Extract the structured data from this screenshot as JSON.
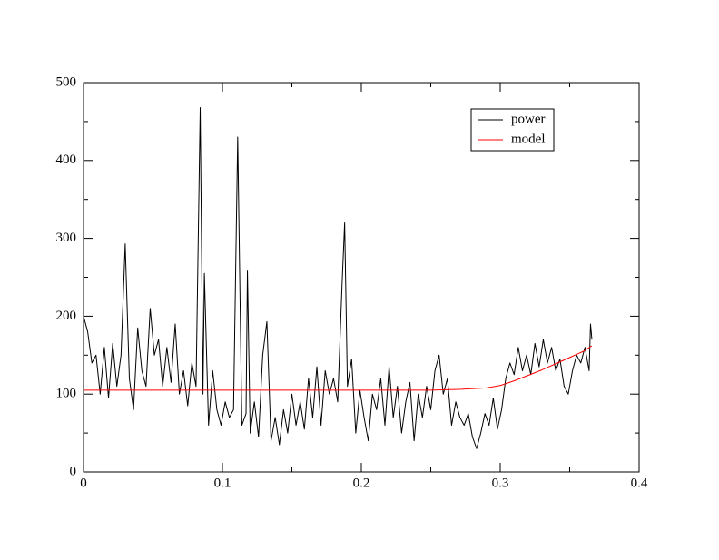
{
  "chart_data": {
    "type": "line",
    "xlim": [
      0,
      0.4
    ],
    "xticks": [
      0,
      0.1,
      0.2,
      0.3,
      0.4
    ],
    "ylim": [
      0,
      500
    ],
    "yticks": [
      0,
      100,
      200,
      300,
      400,
      500
    ],
    "legend": "upper right",
    "series": [
      {
        "name": "power",
        "color": "#000000",
        "x": [
          0,
          0.003,
          0.006,
          0.009,
          0.012,
          0.015,
          0.018,
          0.021,
          0.024,
          0.027,
          0.03,
          0.033,
          0.036,
          0.039,
          0.042,
          0.045,
          0.048,
          0.051,
          0.054,
          0.057,
          0.06,
          0.063,
          0.066,
          0.069,
          0.072,
          0.075,
          0.078,
          0.081,
          0.084,
          0.086,
          0.087,
          0.09,
          0.093,
          0.096,
          0.099,
          0.102,
          0.105,
          0.108,
          0.111,
          0.114,
          0.117,
          0.118,
          0.12,
          0.123,
          0.126,
          0.129,
          0.132,
          0.135,
          0.138,
          0.141,
          0.144,
          0.147,
          0.15,
          0.153,
          0.156,
          0.159,
          0.162,
          0.165,
          0.168,
          0.171,
          0.174,
          0.177,
          0.18,
          0.183,
          0.186,
          0.188,
          0.19,
          0.193,
          0.196,
          0.199,
          0.202,
          0.205,
          0.208,
          0.211,
          0.214,
          0.217,
          0.22,
          0.223,
          0.226,
          0.229,
          0.232,
          0.235,
          0.238,
          0.241,
          0.244,
          0.247,
          0.25,
          0.253,
          0.256,
          0.259,
          0.262,
          0.265,
          0.268,
          0.271,
          0.274,
          0.277,
          0.28,
          0.283,
          0.286,
          0.289,
          0.292,
          0.295,
          0.298,
          0.301,
          0.304,
          0.307,
          0.31,
          0.313,
          0.316,
          0.319,
          0.322,
          0.325,
          0.328,
          0.331,
          0.334,
          0.337,
          0.34,
          0.343,
          0.346,
          0.349,
          0.352,
          0.355,
          0.358,
          0.361,
          0.364,
          0.365,
          0.366
        ],
        "values": [
          200,
          180,
          140,
          150,
          100,
          160,
          95,
          165,
          110,
          150,
          293,
          120,
          80,
          185,
          130,
          110,
          210,
          150,
          170,
          110,
          160,
          115,
          190,
          100,
          130,
          85,
          140,
          110,
          468,
          100,
          255,
          60,
          130,
          80,
          60,
          90,
          70,
          80,
          430,
          60,
          75,
          258,
          50,
          90,
          45,
          150,
          193,
          40,
          70,
          35,
          80,
          50,
          100,
          60,
          90,
          55,
          120,
          70,
          135,
          60,
          130,
          100,
          120,
          90,
          235,
          320,
          110,
          145,
          50,
          105,
          70,
          40,
          100,
          80,
          120,
          60,
          135,
          70,
          110,
          50,
          90,
          115,
          40,
          100,
          70,
          110,
          80,
          130,
          150,
          100,
          120,
          60,
          90,
          70,
          60,
          75,
          45,
          30,
          50,
          75,
          60,
          95,
          55,
          80,
          120,
          140,
          125,
          160,
          130,
          150,
          125,
          165,
          135,
          170,
          140,
          160,
          130,
          145,
          110,
          100,
          130,
          150,
          140,
          160,
          130,
          190,
          170
        ]
      },
      {
        "name": "model",
        "color": "#ff0000",
        "x": [
          0,
          0.05,
          0.1,
          0.15,
          0.2,
          0.25,
          0.27,
          0.29,
          0.3,
          0.31,
          0.32,
          0.33,
          0.34,
          0.35,
          0.36,
          0.366
        ],
        "values": [
          105,
          105,
          105,
          105,
          105,
          105,
          106,
          108,
          111,
          117,
          124,
          131,
          139,
          147,
          155,
          162
        ]
      }
    ]
  }
}
